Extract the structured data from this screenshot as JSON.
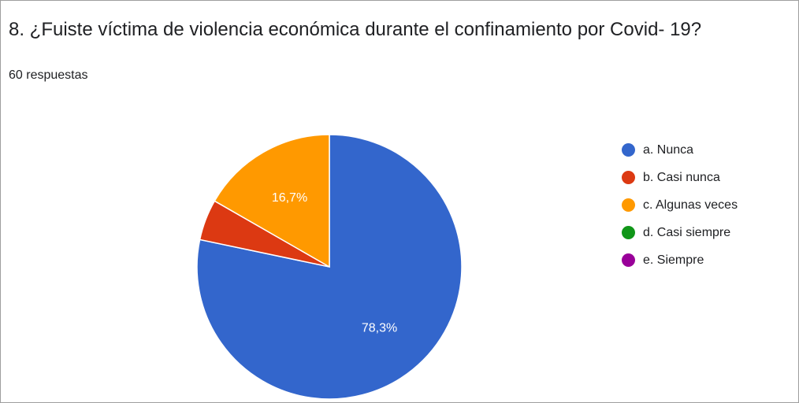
{
  "question": {
    "title": "8. ¿Fuiste víctima de violencia económica durante el confinamiento por Covid- 19?",
    "responses": "60 respuestas"
  },
  "chart_data": {
    "type": "pie",
    "title": "8. ¿Fuiste víctima de violencia económica durante el confinamiento por Covid- 19?",
    "total_responses": 60,
    "categories": [
      "a. Nunca",
      "b. Casi nunca",
      "c. Algunas veces",
      "d. Casi siempre",
      "e. Siempre"
    ],
    "values": [
      78.3,
      5.0,
      16.7,
      0,
      0
    ],
    "data_labels": [
      "78,3%",
      "",
      "16,7%",
      "",
      ""
    ],
    "colors": [
      "#3366cc",
      "#dc3912",
      "#ff9900",
      "#109618",
      "#990099"
    ],
    "legend_position": "right"
  }
}
